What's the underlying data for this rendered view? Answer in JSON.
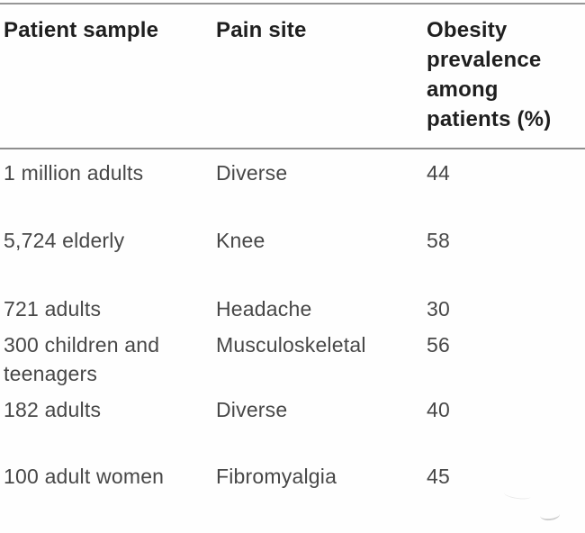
{
  "table": {
    "headers": {
      "sample": "Patient sample",
      "site": "Pain site",
      "prevalence": "Obesity prevalence among patients (%)"
    },
    "rows": [
      {
        "sample": "1 million adults",
        "site": "Diverse",
        "value": "44"
      },
      {
        "sample": "5,724 elderly",
        "site": "Knee",
        "value": "58"
      },
      {
        "sample": "721 adults",
        "site": "Headache",
        "value": "30"
      },
      {
        "sample": "300 children and teenagers",
        "site": "Musculoskeletal",
        "value": "56"
      },
      {
        "sample": "182 adults",
        "site": "Diverse",
        "value": "40"
      },
      {
        "sample": "100 adult women",
        "site": "Fibromyalgia",
        "value": "45"
      }
    ]
  },
  "chart_data": {
    "type": "table",
    "columns": [
      "Patient sample",
      "Pain site",
      "Obesity prevalence among patients (%)"
    ],
    "rows": [
      [
        "1 million adults",
        "Diverse",
        44
      ],
      [
        "5,724 elderly",
        "Knee",
        58
      ],
      [
        "721 adults",
        "Headache",
        30
      ],
      [
        "300 children and teenagers",
        "Musculoskeletal",
        56
      ],
      [
        "182 adults",
        "Diverse",
        40
      ],
      [
        "100 adult women",
        "Fibromyalgia",
        45
      ]
    ]
  },
  "colors": {
    "header_text": "#1f1f1f",
    "body_text": "#474747",
    "rule": "#969696",
    "background": "#fefefe"
  }
}
